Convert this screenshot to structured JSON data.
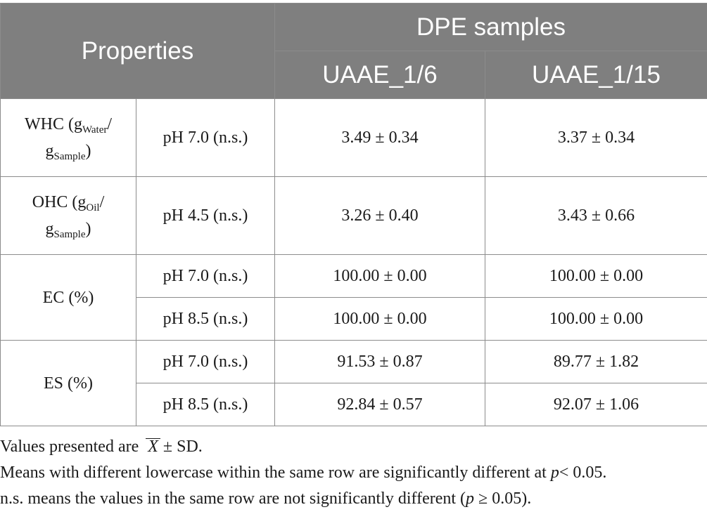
{
  "header": {
    "properties": "Properties",
    "group": "DPE samples",
    "col1": "UAAE_1/6",
    "col2": "UAAE_1/15"
  },
  "rows": {
    "whc": {
      "label_a": "WHC (g",
      "label_sub1": "Water",
      "label_b": "/",
      "label_c": "g",
      "label_sub2": "Sample",
      "label_d": ")",
      "cond": "pH 7.0 (n.s.)",
      "v1": "3.49 ± 0.34",
      "v2": "3.37 ± 0.34"
    },
    "ohc": {
      "label_a": "OHC (g",
      "label_sub1": "Oil",
      "label_b": "/",
      "label_c": "g",
      "label_sub2": "Sample",
      "label_d": ")",
      "cond": "pH 4.5 (n.s.)",
      "v1": "3.26 ± 0.40",
      "v2": "3.43 ± 0.66"
    },
    "ec": {
      "label": "EC (%)",
      "r1": {
        "cond": "pH 7.0 (n.s.)",
        "v1": "100.00 ± 0.00",
        "v2": "100.00 ± 0.00"
      },
      "r2": {
        "cond": "pH 8.5 (n.s.)",
        "v1": "100.00 ± 0.00",
        "v2": "100.00 ± 0.00"
      }
    },
    "es": {
      "label": "ES (%)",
      "r1": {
        "cond": "pH 7.0 (n.s.)",
        "v1": "91.53 ± 0.87",
        "v2": "89.77 ± 1.82"
      },
      "r2": {
        "cond": "pH 8.5 (n.s.)",
        "v1": "92.84 ± 0.57",
        "v2": "92.07 ± 1.06"
      }
    }
  },
  "notes": {
    "line1_a": "Values presented are",
    "line1_x": "X",
    "line1_b": "± SD.",
    "line2_a": "Means with different lowercase within the same row are significantly different at",
    "line2_p": "p",
    "line2_b": "< 0.05.",
    "line3_a": "n.s. means the values in the same row are not significantly different (",
    "line3_p": "p",
    "line3_b": " ≥ 0.05)."
  },
  "colors": {
    "header_bg": "#7f7f7f",
    "header_text": "#ffffff",
    "border": "#8c8c8c"
  }
}
